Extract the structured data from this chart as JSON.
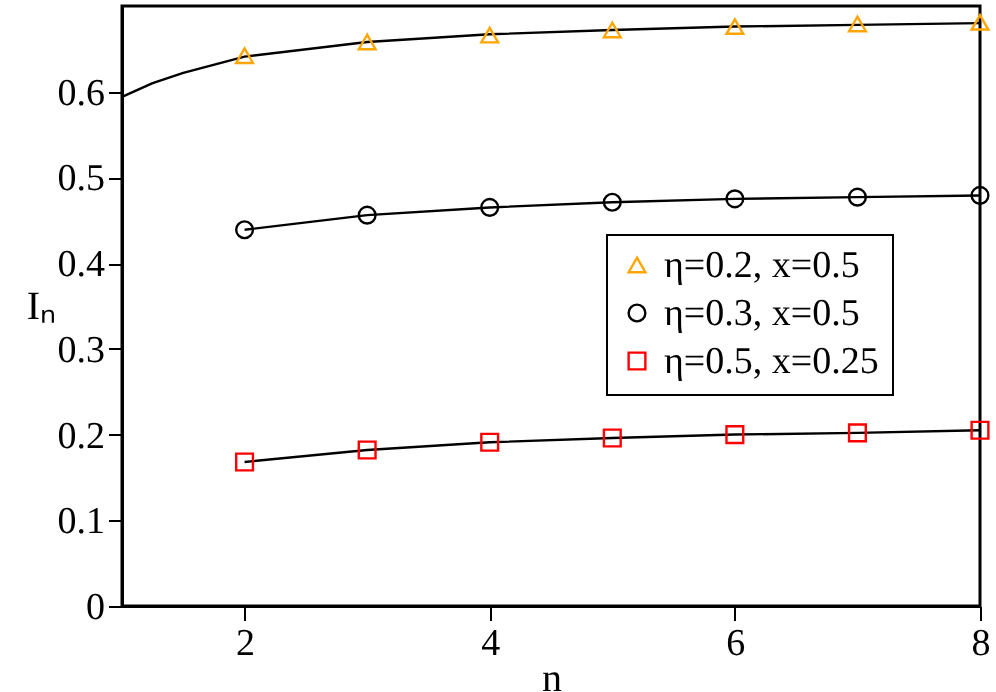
{
  "chart_data": {
    "type": "line",
    "xlabel": "n",
    "ylabel": "Iₙ",
    "xlim": [
      1,
      8
    ],
    "ylim": [
      0,
      0.7
    ],
    "xticks": [
      2,
      4,
      6,
      8
    ],
    "yticks": [
      0,
      0.1,
      0.2,
      0.3,
      0.4,
      0.5,
      0.6
    ],
    "grid": false,
    "legend": "right",
    "series": [
      {
        "type": "line",
        "color": "#000000",
        "marker": "none",
        "x": [
          1,
          1.25,
          1.5,
          2,
          3,
          4,
          5,
          6,
          7,
          8
        ],
        "values": [
          0.594,
          0.61,
          0.622,
          0.641,
          0.658,
          0.667,
          0.672,
          0.676,
          0.678,
          0.68
        ]
      },
      {
        "type": "scatter",
        "name": "η=0.2, x=0.5",
        "color": "#ffa500",
        "marker": "triangle",
        "x": [
          2,
          3,
          4,
          5,
          6,
          7,
          8
        ],
        "values": [
          0.642,
          0.658,
          0.666,
          0.672,
          0.676,
          0.679,
          0.681
        ]
      },
      {
        "type": "line",
        "name": "η=0.3, x=0.5",
        "color": "#000000",
        "marker": "circle",
        "x": [
          2,
          3,
          4,
          5,
          6,
          7,
          8
        ],
        "values": [
          0.439,
          0.456,
          0.465,
          0.471,
          0.475,
          0.477,
          0.479
        ]
      },
      {
        "type": "line",
        "color": "#000000",
        "marker": "none",
        "x": [
          2,
          3,
          4,
          5,
          6,
          7,
          8
        ],
        "values": [
          0.168,
          0.182,
          0.191,
          0.196,
          0.2,
          0.202,
          0.205
        ]
      },
      {
        "type": "scatter",
        "name": "η=0.5, x=0.25",
        "color": "#ff0000",
        "marker": "square",
        "x": [
          2,
          3,
          4,
          5,
          6,
          7,
          8
        ],
        "values": [
          0.168,
          0.182,
          0.191,
          0.196,
          0.2,
          0.202,
          0.205
        ]
      }
    ]
  }
}
